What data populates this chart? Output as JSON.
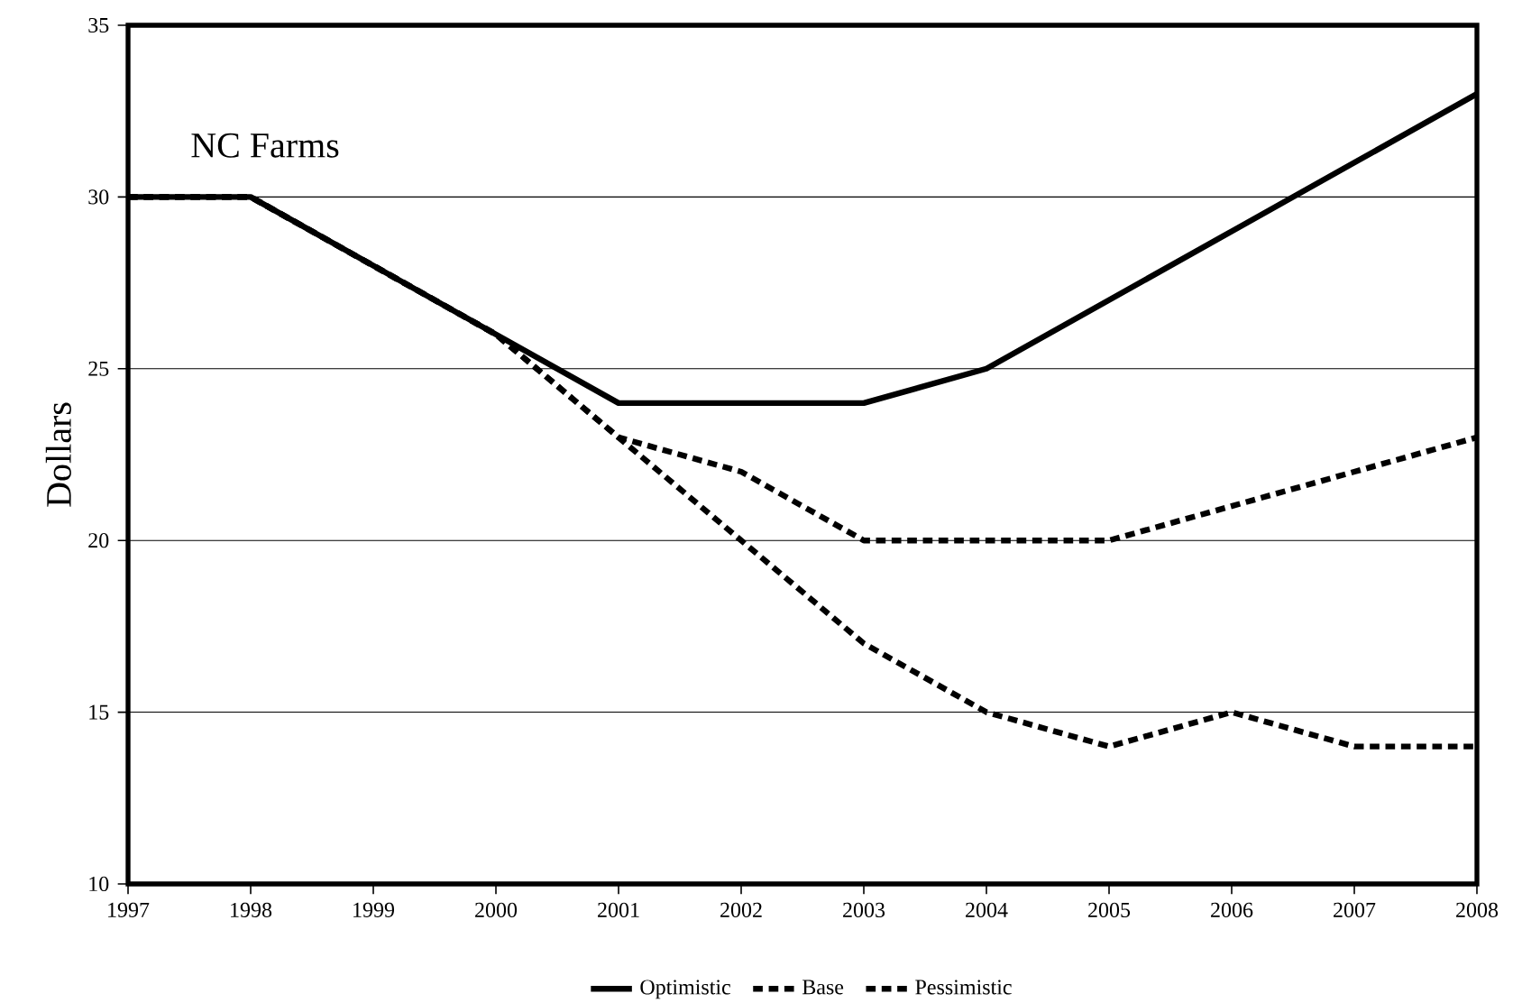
{
  "chart_data": {
    "type": "line",
    "title": "NC Farms",
    "ylabel": "Dollars",
    "x": [
      1997,
      1998,
      1999,
      2000,
      2001,
      2002,
      2003,
      2004,
      2005,
      2006,
      2007,
      2008
    ],
    "series": [
      {
        "name": "Optimistic",
        "color": "#000000",
        "line_style": "solid",
        "values": [
          30,
          30,
          28,
          26,
          24,
          24,
          24,
          25,
          27,
          29,
          31,
          33
        ]
      },
      {
        "name": "Base",
        "color": "#000000",
        "line_style": "dashed",
        "values": [
          30,
          30,
          28,
          26,
          23,
          22,
          20,
          20,
          20,
          21,
          22,
          23
        ]
      },
      {
        "name": "Pessimistic",
        "color": "#000000",
        "line_style": "dashed",
        "values": [
          30,
          30,
          28,
          26,
          23,
          20,
          17,
          15,
          14,
          15,
          14,
          14
        ]
      }
    ],
    "xlim": [
      1997,
      2008
    ],
    "xticks": [
      1997,
      1998,
      1999,
      2000,
      2001,
      2002,
      2003,
      2004,
      2005,
      2006,
      2007,
      2008
    ],
    "ylim": [
      10,
      35
    ],
    "yticks": [
      10,
      15,
      20,
      25,
      30,
      35
    ],
    "grid": "y",
    "legend": "bottom",
    "marker": "none"
  }
}
